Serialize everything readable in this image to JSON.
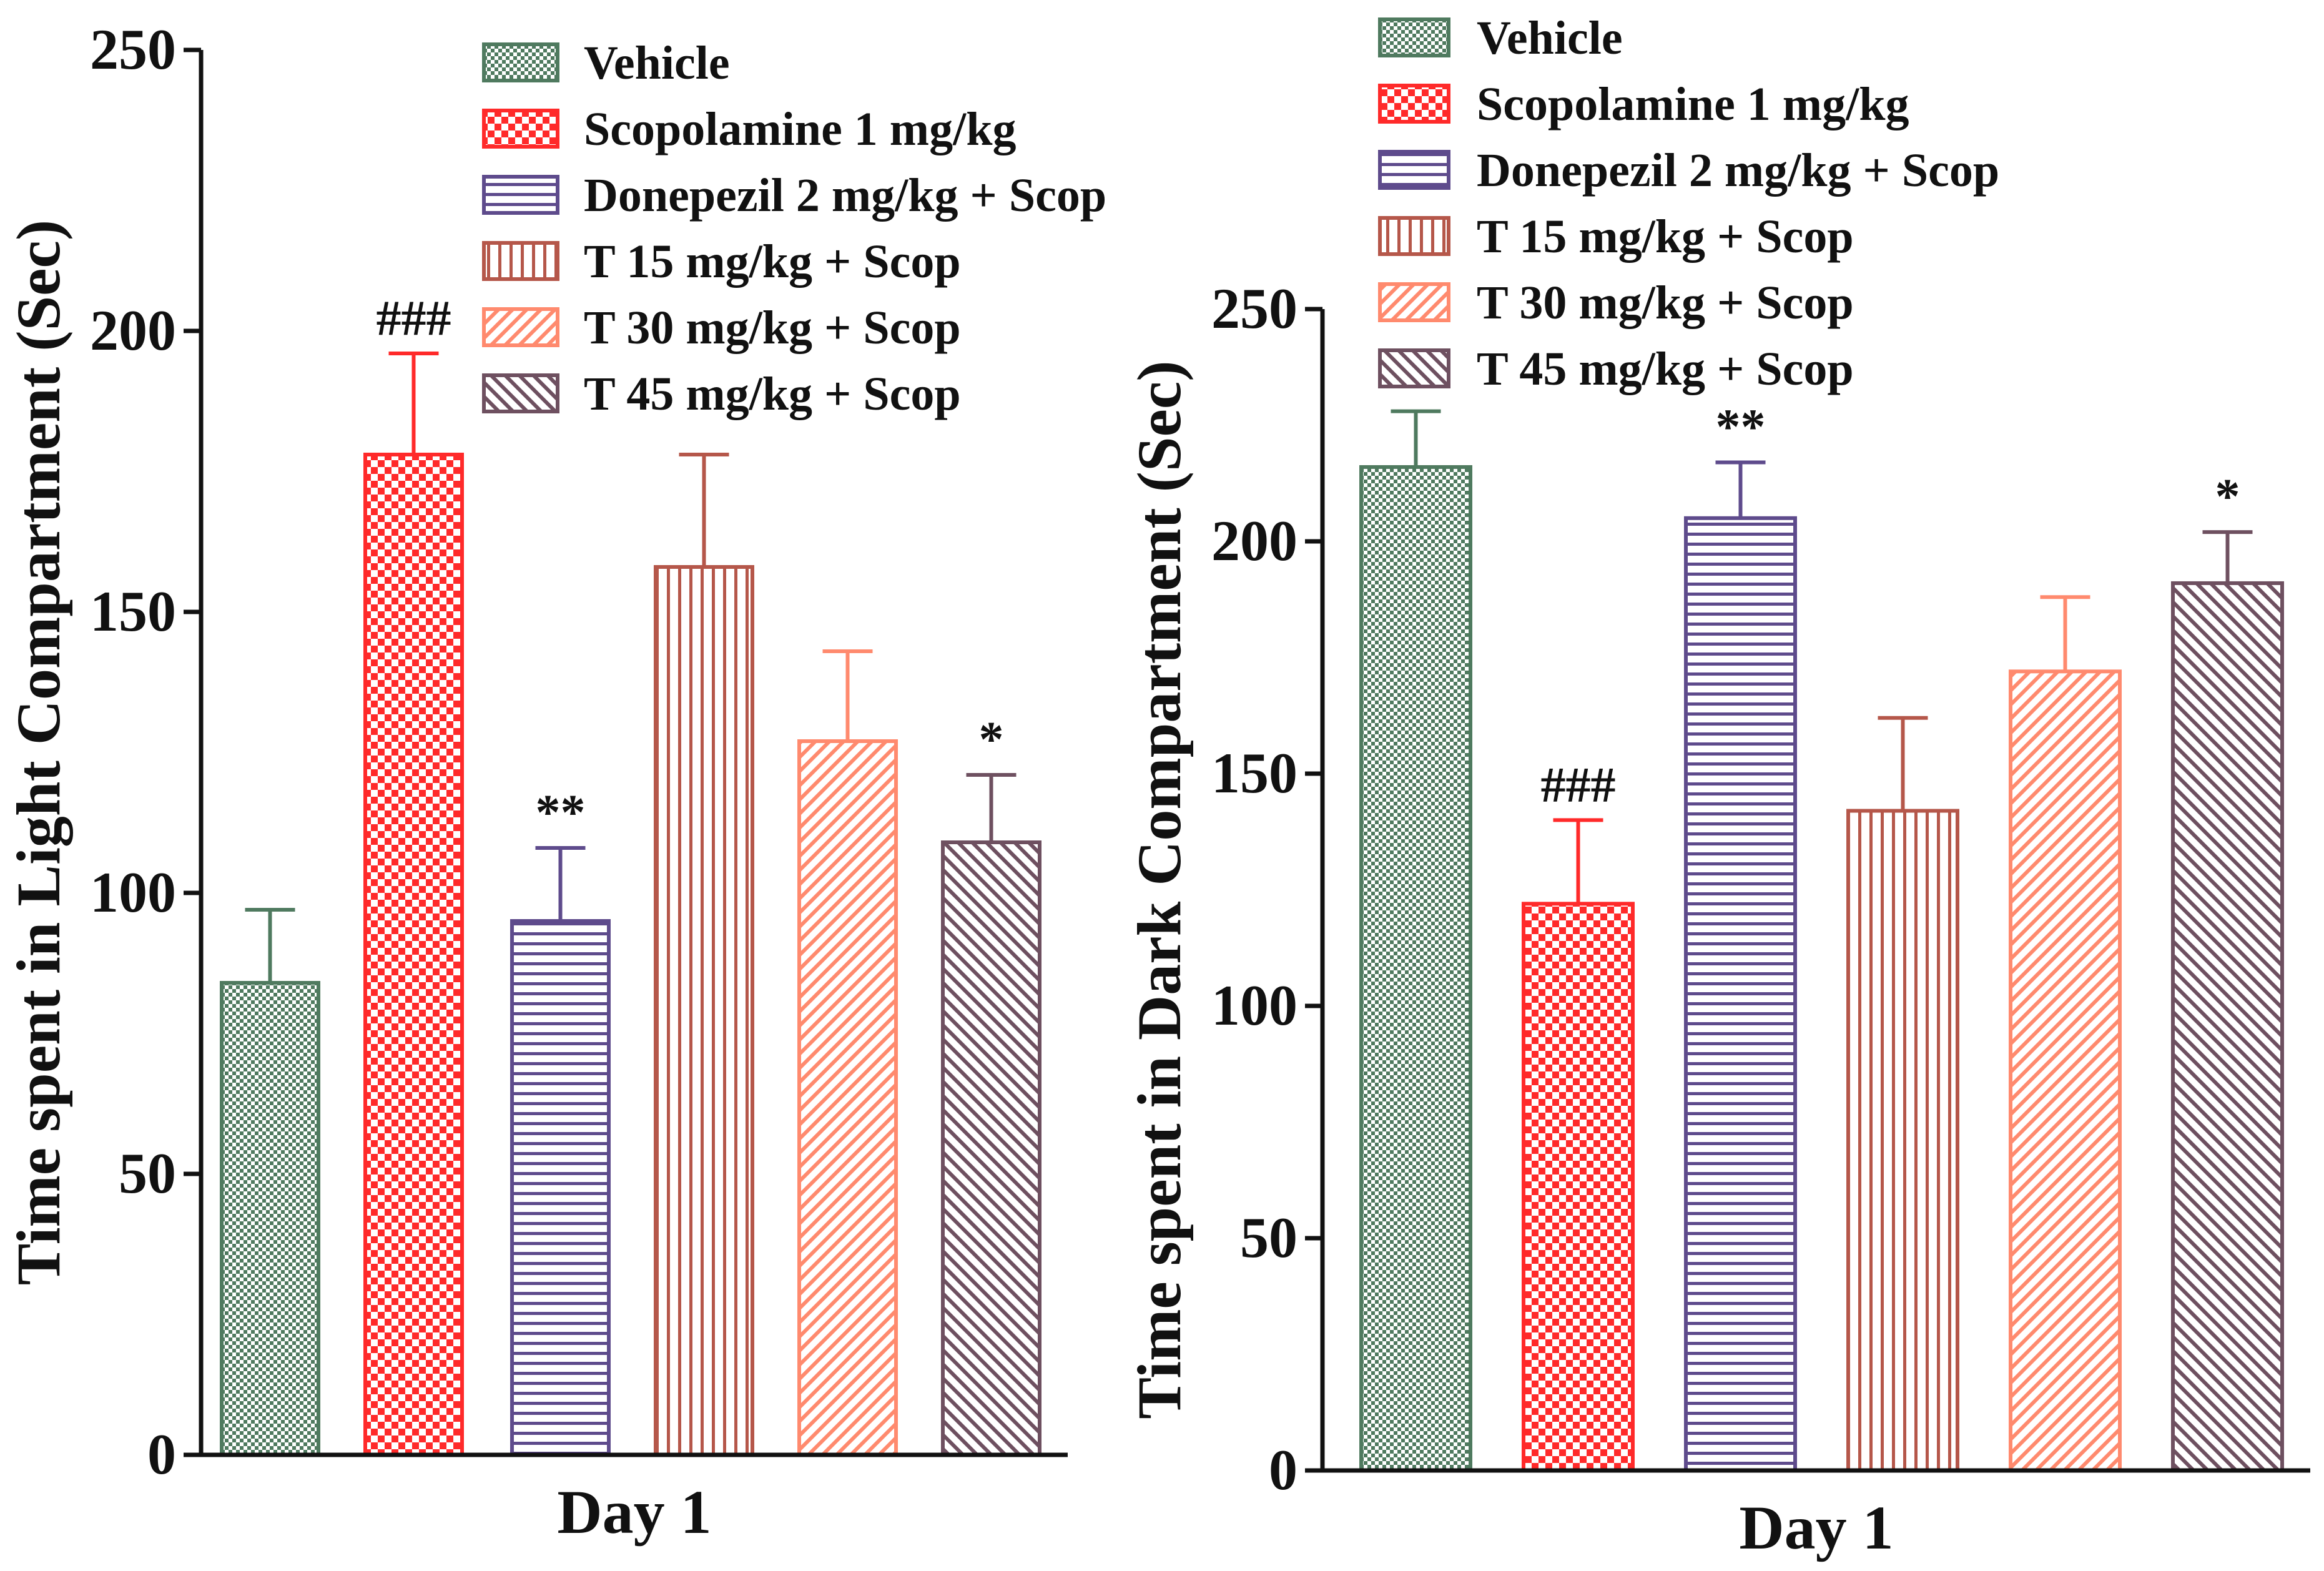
{
  "colors": {
    "vehicle": "#4f7a5f",
    "scopolamine": "#ff2a2a",
    "donepezil": "#5e4b8c",
    "t15": "#b5574a",
    "t30": "#ff8a6e",
    "t45": "#6e5060",
    "axis": "#111111"
  },
  "chart_data": [
    {
      "type": "bar",
      "title": "",
      "xlabel": "Day 1",
      "ylabel": "Time spent in Light Compartment (Sec)",
      "ylim": [
        0,
        250
      ],
      "yticks": [
        0,
        50,
        100,
        150,
        200,
        250
      ],
      "legend_position": "top-right",
      "categories": [
        "Vehicle",
        "Scopolamine 1 mg/kg",
        "Donepezil 2 mg/kg + Scop",
        "T 15 mg/kg + Scop",
        "T 30 mg/kg + Scop",
        "T 45 mg/kg + Scop"
      ],
      "series": [
        {
          "name": "Vehicle",
          "key": "vehicle",
          "pattern": "checker",
          "value": 84,
          "error": 13,
          "sig": ""
        },
        {
          "name": "Scopolamine 1 mg/kg",
          "key": "scopolamine",
          "pattern": "checker-bold",
          "value": 178,
          "error": 18,
          "sig": "###"
        },
        {
          "name": "Donepezil 2 mg/kg + Scop",
          "key": "donepezil",
          "pattern": "horizontal",
          "value": 95,
          "error": 13,
          "sig": "**"
        },
        {
          "name": "T 15 mg/kg + Scop",
          "key": "t15",
          "pattern": "vertical",
          "value": 158,
          "error": 20,
          "sig": ""
        },
        {
          "name": "T 30 mg/kg + Scop",
          "key": "t30",
          "pattern": "diag-up",
          "value": 127,
          "error": 16,
          "sig": ""
        },
        {
          "name": "T 45 mg/kg + Scop",
          "key": "t45",
          "pattern": "diag-down",
          "value": 109,
          "error": 12,
          "sig": "*"
        }
      ]
    },
    {
      "type": "bar",
      "title": "",
      "xlabel": "Day 1",
      "ylabel": "Time spent in Dark Compartment (Sec)",
      "ylim": [
        0,
        250
      ],
      "yticks": [
        0,
        50,
        100,
        150,
        200,
        250
      ],
      "legend_position": "top-right",
      "categories": [
        "Vehicle",
        "Scopolamine 1 mg/kg",
        "Donepezil 2 mg/kg + Scop",
        "T 15 mg/kg + Scop",
        "T 30 mg/kg + Scop",
        "T 45 mg/kg + Scop"
      ],
      "series": [
        {
          "name": "Vehicle",
          "key": "vehicle",
          "pattern": "checker",
          "value": 216,
          "error": 12,
          "sig": ""
        },
        {
          "name": "Scopolamine 1 mg/kg",
          "key": "scopolamine",
          "pattern": "checker-bold",
          "value": 122,
          "error": 18,
          "sig": "###"
        },
        {
          "name": "Donepezil 2 mg/kg + Scop",
          "key": "donepezil",
          "pattern": "horizontal",
          "value": 205,
          "error": 12,
          "sig": "**"
        },
        {
          "name": "T 15 mg/kg + Scop",
          "key": "t15",
          "pattern": "vertical",
          "value": 142,
          "error": 20,
          "sig": ""
        },
        {
          "name": "T 30 mg/kg + Scop",
          "key": "t30",
          "pattern": "diag-up",
          "value": 172,
          "error": 16,
          "sig": ""
        },
        {
          "name": "T 45 mg/kg + Scop",
          "key": "t45",
          "pattern": "diag-down",
          "value": 191,
          "error": 11,
          "sig": "*"
        }
      ]
    }
  ]
}
